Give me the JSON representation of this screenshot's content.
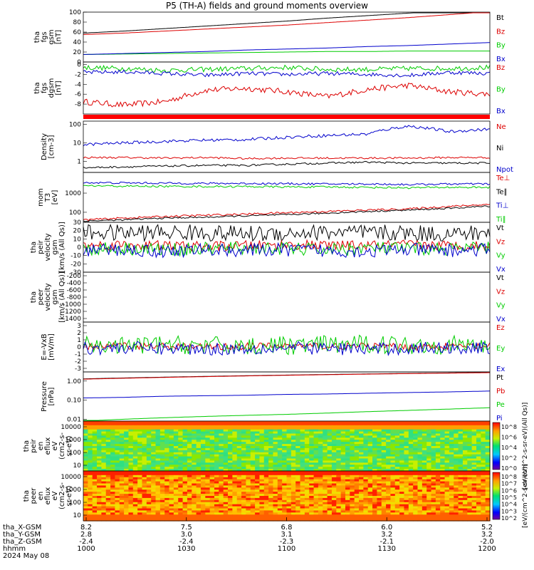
{
  "title": "P5 (TH-A) fields and ground moments overview",
  "date_label": "2024 May 08",
  "colors": {
    "black": "#000000",
    "red": "#dd0000",
    "green": "#00cc00",
    "blue": "#0000cc"
  },
  "chart_data": [
    {
      "type": "line",
      "id": "fgs_gsm",
      "ylabel": [
        "tha",
        "fgs",
        "gsm",
        "[nT]"
      ],
      "yticks": [
        "100",
        "80",
        "60",
        "40",
        "20",
        "0"
      ],
      "ylim": [
        0,
        100
      ],
      "series": [
        {
          "name": "Bt",
          "color": "#000000",
          "values": [
            58,
            62,
            67,
            72,
            77,
            82,
            88,
            93,
            98,
            103,
            107
          ]
        },
        {
          "name": "Bz",
          "color": "#dd0000",
          "values": [
            55,
            58,
            62,
            66,
            70,
            74,
            79,
            84,
            89,
            95,
            101
          ]
        },
        {
          "name": "By",
          "color": "#00cc00",
          "values": [
            15,
            16,
            17,
            18,
            19,
            20,
            21,
            21,
            22,
            22,
            22
          ]
        },
        {
          "name": "Bx",
          "color": "#0000cc",
          "values": [
            15,
            17,
            19,
            21,
            24,
            26,
            28,
            31,
            33,
            36,
            39
          ]
        }
      ]
    },
    {
      "type": "line",
      "id": "fgs_dgsm",
      "ylabel": [
        "tha",
        "fgs",
        "dgsm",
        "[nT]"
      ],
      "yticks": [
        "0",
        "-2",
        "-4",
        "-6",
        "-8"
      ],
      "ylim": [
        -10,
        0.5
      ],
      "series": [
        {
          "name": "Bz",
          "color": "#dd0000",
          "values": [
            -7.5,
            -8.2,
            -7.5,
            -5.2,
            -4.8,
            -5.5,
            -6.5,
            -5.0,
            -4.2,
            -5.5,
            -6.0
          ]
        },
        {
          "name": "By",
          "color": "#00cc00",
          "values": [
            -0.6,
            -0.8,
            -1.2,
            -1.0,
            -0.8,
            -0.6,
            -1.0,
            -1.0,
            -0.8,
            -0.8,
            -0.6
          ]
        },
        {
          "name": "Bx",
          "color": "#0000cc",
          "values": [
            -1.6,
            -1.5,
            -1.8,
            -2.2,
            -1.8,
            -2.0,
            -1.8,
            -2.0,
            -2.2,
            -1.6,
            -1.8
          ]
        }
      ]
    },
    {
      "type": "line",
      "id": "density",
      "scale": "log",
      "ylabel": [
        "Density",
        "[cm-3]"
      ],
      "yticks": [
        "100",
        "10",
        "1"
      ],
      "ylim": [
        0.25,
        150
      ],
      "series": [
        {
          "name": "Ne",
          "color": "#dd0000",
          "values": [
            1.6,
            1.6,
            1.5,
            1.6,
            1.4,
            1.5,
            1.5,
            1.5,
            1.5,
            1.6,
            1.6
          ]
        },
        {
          "name": "Ni",
          "color": "#000000",
          "values": [
            0.45,
            0.5,
            0.55,
            0.6,
            0.6,
            0.7,
            0.8,
            0.9,
            0.8,
            0.8,
            0.8
          ]
        },
        {
          "name": "Npot",
          "color": "#0000cc",
          "values": [
            8,
            10,
            12,
            14,
            15,
            20,
            25,
            30,
            80,
            40,
            55
          ]
        }
      ]
    },
    {
      "type": "line",
      "id": "temperature",
      "scale": "log",
      "ylabel": [
        "mom",
        "T3",
        "[eV]"
      ],
      "yticks": [
        "1000",
        "100"
      ],
      "ylim": [
        30,
        12000
      ],
      "series": [
        {
          "name": "Te⊥",
          "color": "#dd0000",
          "values": [
            40,
            50,
            60,
            70,
            80,
            95,
            110,
            130,
            150,
            200,
            260
          ]
        },
        {
          "name": "Te∥",
          "color": "#000000",
          "values": [
            35,
            40,
            50,
            55,
            65,
            75,
            90,
            110,
            130,
            160,
            210
          ]
        },
        {
          "name": "Ti⊥",
          "color": "#0000cc",
          "values": [
            3500,
            3400,
            3300,
            3200,
            3200,
            3100,
            3000,
            3000,
            2800,
            3000,
            3000
          ]
        },
        {
          "name": "Ti∥",
          "color": "#00cc00",
          "values": [
            2400,
            2300,
            2250,
            2200,
            2200,
            2100,
            2100,
            2000,
            1900,
            2000,
            2000
          ]
        }
      ]
    },
    {
      "type": "line",
      "id": "peir_velocity",
      "ylabel": [
        "tha",
        "peir",
        "velocity",
        "gsm",
        "[km/s (All Qs)]"
      ],
      "yticks": [
        "30",
        "20",
        "10",
        "0",
        "-10",
        "-20",
        "-30"
      ],
      "ylim": [
        -30,
        30
      ],
      "series": [
        {
          "name": "Vt",
          "color": "#000000",
          "values": [
            18,
            17,
            18,
            17,
            16,
            17,
            18,
            17,
            17,
            16,
            17
          ]
        },
        {
          "name": "Vz",
          "color": "#dd0000",
          "values": [
            2,
            3,
            2,
            1,
            2,
            3,
            2,
            2,
            3,
            2,
            2
          ]
        },
        {
          "name": "Vy",
          "color": "#00cc00",
          "values": [
            -2,
            -1,
            -3,
            -2,
            -1,
            -2,
            -3,
            -1,
            -2,
            -2,
            -1
          ]
        },
        {
          "name": "Vx",
          "color": "#0000cc",
          "values": [
            -4,
            -3,
            -5,
            -3,
            -4,
            -3,
            -4,
            -5,
            -3,
            -4,
            -3
          ]
        }
      ]
    },
    {
      "type": "line",
      "id": "peer_velocity",
      "ylabel": [
        "tha",
        "peer",
        "velocity",
        "gsm",
        "[km/s (All Qs)]"
      ],
      "yticks": [
        "-200",
        "-400",
        "-600",
        "-800",
        "-1000",
        "-1200",
        "-1400"
      ],
      "ylim": [
        -1500,
        -100
      ],
      "series": [
        {
          "name": "Vt",
          "color": "#000000",
          "values": []
        },
        {
          "name": "Vz",
          "color": "#dd0000",
          "values": []
        },
        {
          "name": "Vy",
          "color": "#00cc00",
          "values": []
        },
        {
          "name": "Vx",
          "color": "#0000cc",
          "values": []
        }
      ]
    },
    {
      "type": "line",
      "id": "efield",
      "ylabel": [
        "E=-VxB",
        "[mV/m]"
      ],
      "yticks": [
        "3",
        "2",
        "1",
        "0",
        "-1",
        "-2",
        "-3"
      ],
      "ylim": [
        -3.5,
        3.5
      ],
      "series": [
        {
          "name": "Ez",
          "color": "#dd0000",
          "values": [
            0.1,
            0.2,
            0.1,
            0.0,
            0.1,
            0.2,
            0.1,
            0.1,
            0.0,
            0.1,
            0.1
          ]
        },
        {
          "name": "Ey",
          "color": "#00cc00",
          "values": [
            0.2,
            0.1,
            0.3,
            0.2,
            0.1,
            0.2,
            0.3,
            0.4,
            0.3,
            0.3,
            0.2
          ]
        },
        {
          "name": "Ex",
          "color": "#0000cc",
          "values": [
            -0.2,
            -0.1,
            -0.2,
            -0.3,
            -0.2,
            -0.1,
            -0.2,
            -0.3,
            -0.2,
            -0.1,
            -0.2
          ]
        }
      ]
    },
    {
      "type": "line",
      "id": "pressure",
      "scale": "log",
      "ylabel": [
        "Pressure",
        "[nPa]"
      ],
      "yticks": [
        "1.00",
        "0.10",
        "0.01"
      ],
      "ylim": [
        0.008,
        3
      ],
      "series": [
        {
          "name": "Pt",
          "color": "#000000",
          "values": [
            1.3,
            1.45,
            1.6,
            1.75,
            1.9,
            2.05,
            2.2,
            2.35,
            2.5,
            2.65,
            2.8
          ]
        },
        {
          "name": "Pb",
          "color": "#dd0000",
          "values": [
            1.25,
            1.4,
            1.55,
            1.7,
            1.85,
            2.0,
            2.15,
            2.3,
            2.45,
            2.6,
            2.75
          ]
        },
        {
          "name": "Pe",
          "color": "#00cc00",
          "values": [
            0.008,
            0.01,
            0.012,
            0.014,
            0.016,
            0.018,
            0.021,
            0.025,
            0.029,
            0.034,
            0.04
          ]
        },
        {
          "name": "Pi",
          "color": "#0000cc",
          "values": [
            0.13,
            0.14,
            0.16,
            0.17,
            0.18,
            0.2,
            0.21,
            0.23,
            0.25,
            0.27,
            0.3
          ]
        }
      ]
    },
    {
      "type": "heatmap",
      "id": "peir_eflux",
      "ylabel": [
        "tha",
        "peir",
        "en",
        "eflux",
        "eV",
        "(cm2-s-",
        "sr-eV)"
      ],
      "yticks": [
        "10000",
        "1000",
        "100",
        "10"
      ],
      "colorbar": {
        "ticks": [
          "10^8",
          "10^6",
          "10^4",
          "10^2",
          "10^0"
        ],
        "label": "[eV/(cm^2-s-sr-eV)(All Qs)]"
      }
    },
    {
      "type": "heatmap",
      "id": "peer_eflux",
      "ylabel": [
        "tha",
        "peer",
        "en",
        "eflux",
        "eV",
        "(cm2-s-",
        "sr-eV)"
      ],
      "yticks": [
        "10000",
        "1000",
        "100",
        "10"
      ],
      "colorbar": {
        "ticks": [
          "10^8",
          "10^7",
          "10^6",
          "10^5",
          "10^4",
          "10^3",
          "10^2"
        ],
        "label": "[eV/(cm^2-s-sr-eV)]"
      }
    }
  ],
  "footer": {
    "rows": [
      {
        "label": "tha_X-GSM",
        "values": [
          "8.2",
          "7.5",
          "6.8",
          "6.0",
          "5.2"
        ]
      },
      {
        "label": "tha_Y-GSM",
        "values": [
          "2.8",
          "3.0",
          "3.1",
          "3.2",
          "3.2"
        ]
      },
      {
        "label": "tha_Z-GSM",
        "values": [
          "-2.4",
          "-2.4",
          "-2.3",
          "-2.1",
          "-2.0"
        ]
      },
      {
        "label": "hhmm",
        "values": [
          "1000",
          "1030",
          "1100",
          "1130",
          "1200"
        ]
      }
    ]
  }
}
